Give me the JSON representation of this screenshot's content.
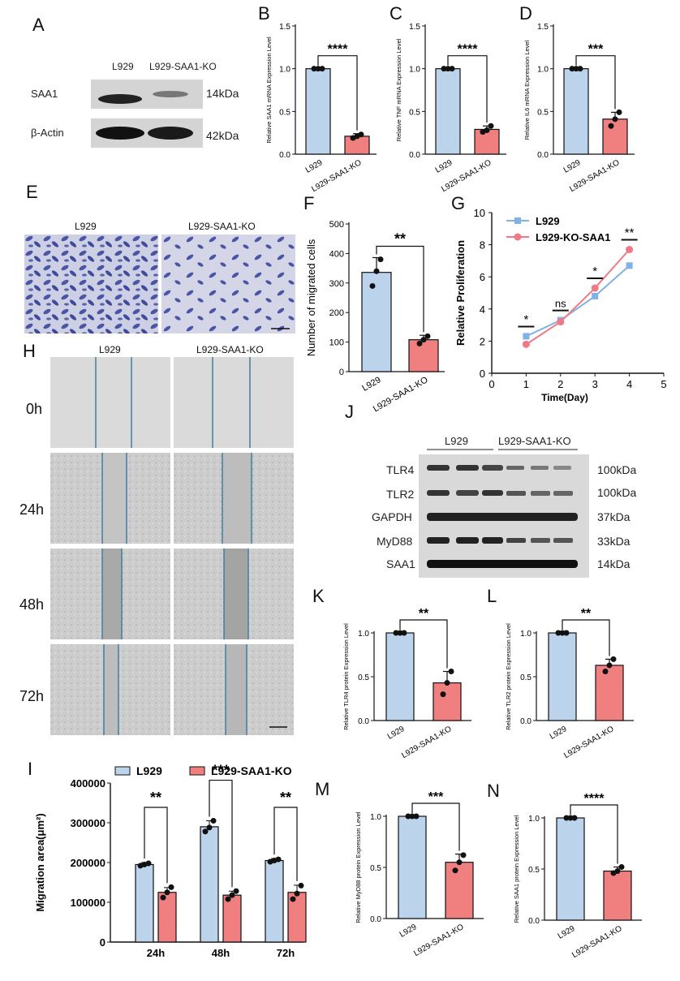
{
  "colors": {
    "l929": "#bcd3ec",
    "ko": "#f08080",
    "l929_line": "#7fb2e6",
    "ko_line": "#ef7a85",
    "stain": "#4b55a5"
  },
  "panels": {
    "A": {
      "letter": "A",
      "col_labels": [
        "L929",
        "L929-SAA1-KO"
      ],
      "rows": [
        {
          "label": "SAA1",
          "kda": "14kDa"
        },
        {
          "label": "β-Actin",
          "kda": "42kDa"
        }
      ]
    },
    "B": {
      "letter": "B",
      "ylabel": "Relative SAA1 mRNA Expression Level",
      "sig": "****"
    },
    "C": {
      "letter": "C",
      "ylabel": "Relative TNF mRNA Expression Level",
      "sig": "****"
    },
    "D": {
      "letter": "D",
      "ylabel": "Relative IL6 mRNA Expression Level",
      "sig": "***"
    },
    "E": {
      "letter": "E",
      "labels": [
        "L929",
        "L929-SAA1-KO"
      ]
    },
    "F": {
      "letter": "F",
      "ylabel": "Number of migrated cells",
      "sig": "**"
    },
    "G": {
      "letter": "G",
      "ylabel": "Relative Proliferation",
      "xlabel": "Time(Day)",
      "legend": [
        "L929",
        "L929-KO-SAA1"
      ],
      "sigs": [
        "*",
        "ns",
        "*",
        "**"
      ]
    },
    "H": {
      "letter": "H",
      "col_labels": [
        "L929",
        "L929-SAA1-KO"
      ],
      "row_labels": [
        "0h",
        "24h",
        "48h",
        "72h"
      ]
    },
    "I": {
      "letter": "I",
      "ylabel": "Migration area(μm²)",
      "legend": [
        "L929",
        "L929-SAA1-KO"
      ],
      "sigs": [
        "**",
        "***",
        "**"
      ]
    },
    "J": {
      "letter": "J",
      "col_labels": [
        "L929",
        "L929-SAA1-KO"
      ],
      "rows": [
        {
          "label": "TLR4",
          "kda": "100kDa"
        },
        {
          "label": "TLR2",
          "kda": "100kDa"
        },
        {
          "label": "GAPDH",
          "kda": "37kDa"
        },
        {
          "label": "MyD88",
          "kda": "33kDa"
        },
        {
          "label": "SAA1",
          "kda": "14kDa"
        }
      ]
    },
    "K": {
      "letter": "K",
      "ylabel": "Relative TLR4 protein Expression Level",
      "sig": "**"
    },
    "L": {
      "letter": "L",
      "ylabel": "Relative TLR2 protein Expression Level",
      "sig": "**"
    },
    "M": {
      "letter": "M",
      "ylabel": "Relative MyD88 protein Expression Level",
      "sig": "***"
    },
    "N": {
      "letter": "N",
      "ylabel": "Relative SAA1 protein Expression Level",
      "sig": "****"
    }
  },
  "chart_data": [
    {
      "id": "B",
      "type": "bar",
      "categories": [
        "L929",
        "L929-SAA1-KO"
      ],
      "values": [
        1.0,
        0.21
      ],
      "errors": [
        0.0,
        0.03
      ],
      "points": [
        [
          1.0,
          1.0,
          1.0
        ],
        [
          0.19,
          0.21,
          0.23
        ]
      ],
      "ylim": [
        0,
        1.5
      ],
      "yticks": [
        0.0,
        0.5,
        1.0,
        1.5
      ],
      "ylabel": "Relative SAA1 mRNA Expression Level",
      "significance": "****"
    },
    {
      "id": "C",
      "type": "bar",
      "categories": [
        "L929",
        "L929-SAA1-KO"
      ],
      "values": [
        1.0,
        0.29
      ],
      "errors": [
        0.0,
        0.04
      ],
      "points": [
        [
          1.0,
          1.0,
          1.0
        ],
        [
          0.26,
          0.28,
          0.33
        ]
      ],
      "ylim": [
        0,
        1.5
      ],
      "yticks": [
        0.0,
        0.5,
        1.0,
        1.5
      ],
      "ylabel": "Relative TNF mRNA Expression Level",
      "significance": "****"
    },
    {
      "id": "D",
      "type": "bar",
      "categories": [
        "L929",
        "L929-SAA1-KO"
      ],
      "values": [
        1.0,
        0.41
      ],
      "errors": [
        0.0,
        0.08
      ],
      "points": [
        [
          1.0,
          1.0,
          1.0
        ],
        [
          0.33,
          0.41,
          0.49
        ]
      ],
      "ylim": [
        0,
        1.5
      ],
      "yticks": [
        0.0,
        0.5,
        1.0,
        1.5
      ],
      "ylabel": "Relative IL6 mRNA Expression Level",
      "significance": "***"
    },
    {
      "id": "F",
      "type": "bar",
      "categories": [
        "L929",
        "L929-SAA1-KO"
      ],
      "values": [
        336,
        108
      ],
      "errors": [
        50,
        15
      ],
      "points": [
        [
          290,
          340,
          380
        ],
        [
          95,
          108,
          120
        ]
      ],
      "ylim": [
        0,
        500
      ],
      "yticks": [
        0,
        100,
        200,
        300,
        400,
        500
      ],
      "ylabel": "Number of migrated cells",
      "significance": "**"
    },
    {
      "id": "G",
      "type": "line",
      "x": [
        1,
        2,
        3,
        4
      ],
      "xlim": [
        0,
        5
      ],
      "xticks": [
        0,
        1,
        2,
        3,
        4,
        5
      ],
      "ylim": [
        0,
        10
      ],
      "yticks": [
        0,
        2,
        4,
        6,
        8,
        10
      ],
      "xlabel": "Time(Day)",
      "ylabel": "Relative Proliferation",
      "series": [
        {
          "name": "L929",
          "values": [
            2.3,
            3.3,
            4.8,
            6.7
          ]
        },
        {
          "name": "L929-KO-SAA1",
          "values": [
            1.8,
            3.2,
            5.3,
            7.7
          ]
        }
      ],
      "significance": [
        "*",
        "ns",
        "*",
        "**"
      ]
    },
    {
      "id": "I",
      "type": "bar",
      "categories": [
        "24h",
        "48h",
        "72h"
      ],
      "ylim": [
        0,
        400000
      ],
      "yticks": [
        0,
        100000,
        200000,
        300000,
        400000
      ],
      "ylabel": "Migration area(μm²)",
      "series": [
        {
          "name": "L929",
          "values": [
            195000,
            290000,
            205000
          ],
          "errors": [
            5000,
            15000,
            5000
          ],
          "points": [
            [
              192000,
              195000,
              198000
            ],
            [
              278000,
              288000,
              305000
            ],
            [
              202000,
              205000,
              208000
            ]
          ]
        },
        {
          "name": "L929-SAA1-KO",
          "values": [
            125000,
            118000,
            125000
          ],
          "errors": [
            12000,
            10000,
            18000
          ],
          "points": [
            [
              112000,
              125000,
              138000
            ],
            [
              108000,
              118000,
              128000
            ],
            [
              108000,
              122000,
              142000
            ]
          ]
        }
      ],
      "significance": [
        "**",
        "***",
        "**"
      ]
    },
    {
      "id": "K",
      "type": "bar",
      "categories": [
        "L929",
        "L929-SAA1-KO"
      ],
      "values": [
        1.0,
        0.43
      ],
      "errors": [
        0.0,
        0.13
      ],
      "points": [
        [
          1.0,
          1.0,
          1.0
        ],
        [
          0.3,
          0.43,
          0.56
        ]
      ],
      "ylim": [
        0,
        1.0
      ],
      "yticks": [
        0.0,
        0.5,
        1.0
      ],
      "ylabel": "Relative TLR4 protein Expression Level",
      "significance": "**"
    },
    {
      "id": "L",
      "type": "bar",
      "categories": [
        "L929",
        "L929-SAA1-KO"
      ],
      "values": [
        1.0,
        0.63
      ],
      "errors": [
        0.0,
        0.07
      ],
      "points": [
        [
          1.0,
          1.0,
          1.0
        ],
        [
          0.56,
          0.63,
          0.7
        ]
      ],
      "ylim": [
        0,
        1.0
      ],
      "yticks": [
        0.0,
        0.5,
        1.0
      ],
      "ylabel": "Relative TLR2 protein Expression Level",
      "significance": "**"
    },
    {
      "id": "M",
      "type": "bar",
      "categories": [
        "L929",
        "L929-SAA1-KO"
      ],
      "values": [
        1.0,
        0.55
      ],
      "errors": [
        0.0,
        0.08
      ],
      "points": [
        [
          1.0,
          1.0,
          1.0
        ],
        [
          0.47,
          0.55,
          0.62
        ]
      ],
      "ylim": [
        0,
        1.0
      ],
      "yticks": [
        0.0,
        0.5,
        1.0
      ],
      "ylabel": "Relative MyD88 protein Expression Level",
      "significance": "***"
    },
    {
      "id": "N",
      "type": "bar",
      "categories": [
        "L929",
        "L929-SAA1-KO"
      ],
      "values": [
        1.0,
        0.48
      ],
      "errors": [
        0.0,
        0.04
      ],
      "points": [
        [
          1.0,
          1.0,
          1.0
        ],
        [
          0.46,
          0.48,
          0.52
        ]
      ],
      "ylim": [
        0,
        1.0
      ],
      "yticks": [
        0.0,
        0.5,
        1.0
      ],
      "ylabel": "Relative SAA1 protein Expression Level",
      "significance": "****"
    }
  ]
}
